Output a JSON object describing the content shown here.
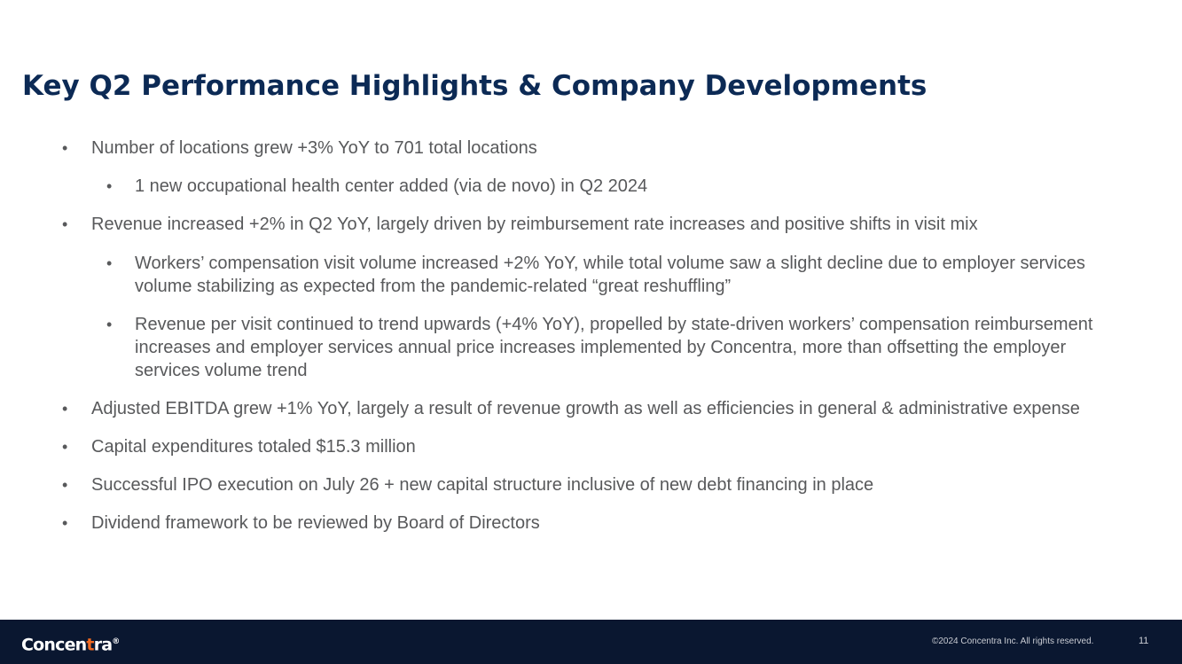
{
  "slide": {
    "title": "Key Q2 Performance Highlights & Company Developments"
  },
  "bullets": [
    {
      "level": 1,
      "text": "Number of locations grew +3% YoY to 701 total locations"
    },
    {
      "level": 2,
      "text": "1 new occupational health center added (via de novo) in Q2 2024"
    },
    {
      "level": 1,
      "text": "Revenue increased +2% in Q2 YoY, largely driven by reimbursement rate increases and positive shifts in visit mix"
    },
    {
      "level": 2,
      "text": "Workers’ compensation visit volume increased +2% YoY, while total volume saw a slight decline due to employer services volume stabilizing as expected from the pandemic-related “great reshuffling”"
    },
    {
      "level": 2,
      "text": "Revenue per visit continued to trend upwards (+4% YoY), propelled by state-driven workers’ compensation reimbursement increases and employer services annual price increases implemented by Concentra, more than offsetting the employer services volume trend"
    },
    {
      "level": 1,
      "text": "Adjusted EBITDA grew +1% YoY, largely a result of revenue growth as well as efficiencies in general & administrative expense"
    },
    {
      "level": 1,
      "text": "Capital expenditures totaled $15.3 million"
    },
    {
      "level": 1,
      "text": "Successful IPO execution on July 26 + new capital structure inclusive of new debt financing in place"
    },
    {
      "level": 1,
      "text": "Dividend framework to be reviewed by Board of Directors"
    }
  ],
  "footer": {
    "logo_part1": "Concen",
    "logo_mark": "t",
    "logo_part2": "ra",
    "logo_reg": "®",
    "copyright": "©2024 Concentra Inc. All rights reserved.",
    "page_number": "11"
  },
  "colors": {
    "title": "#0c2a55",
    "body_text": "#58595b",
    "footer_bg": "#0a1730",
    "logo_accent": "#f26a21"
  }
}
